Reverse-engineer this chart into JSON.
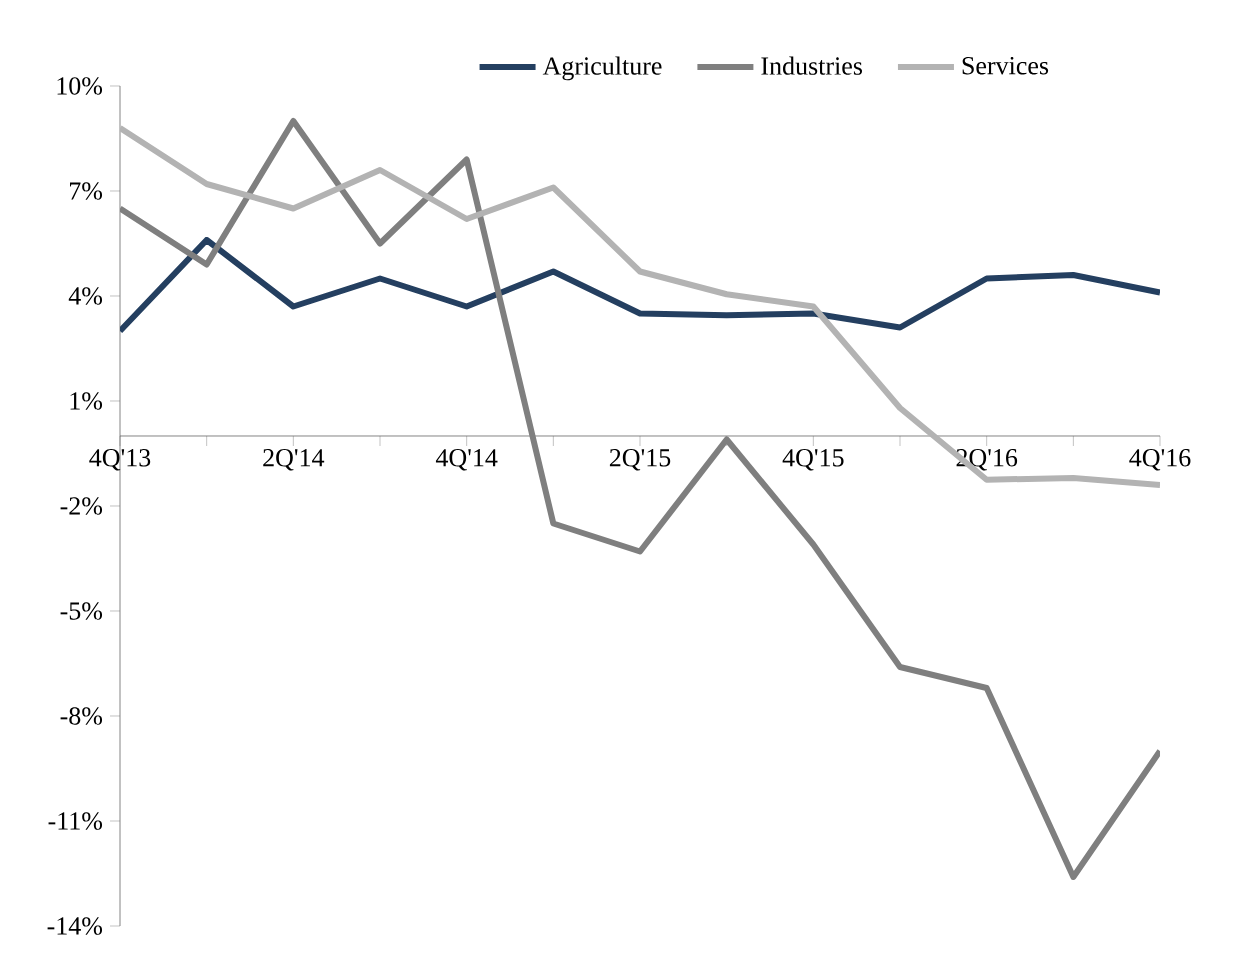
{
  "chart_data": {
    "type": "line",
    "categories": [
      "4Q'13",
      null,
      "2Q'14",
      null,
      "4Q'14",
      null,
      "2Q'15",
      null,
      "4Q'15",
      null,
      "2Q'16",
      null,
      "4Q'16"
    ],
    "series": [
      {
        "name": "Agriculture",
        "color": "#243f60",
        "values": [
          3.0,
          5.6,
          3.7,
          4.5,
          3.7,
          4.7,
          3.5,
          3.45,
          3.5,
          3.1,
          4.5,
          4.6,
          4.1
        ]
      },
      {
        "name": "Industries",
        "color": "#7f7f7f",
        "values": [
          6.5,
          4.9,
          9.0,
          5.5,
          7.9,
          -2.5,
          -3.3,
          -0.1,
          -3.1,
          -6.6,
          -7.2,
          -12.6,
          -9.0
        ]
      },
      {
        "name": "Services",
        "color": "#b3b3b3",
        "values": [
          8.8,
          7.2,
          6.5,
          7.6,
          6.2,
          7.1,
          4.7,
          4.05,
          3.7,
          0.8,
          -1.25,
          -1.2,
          -1.4
        ]
      }
    ],
    "ylim": [
      -14,
      10
    ],
    "yticks": [
      {
        "value": 10,
        "label": "10%"
      },
      {
        "value": 7,
        "label": "7%"
      },
      {
        "value": 4,
        "label": "4%"
      },
      {
        "value": 1,
        "label": "1%"
      },
      {
        "value": -2,
        "label": "-2%"
      },
      {
        "value": -5,
        "label": "-5%"
      },
      {
        "value": -8,
        "label": "-8%"
      },
      {
        "value": -11,
        "label": "-11%"
      },
      {
        "value": -14,
        "label": "-14%"
      }
    ],
    "legend": "top",
    "grid": false,
    "marker": "none",
    "line_style": "solid"
  }
}
